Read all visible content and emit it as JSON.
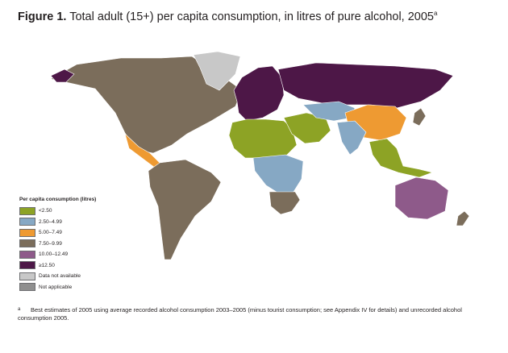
{
  "figure": {
    "label": "Figure 1.",
    "title": "Total adult (15+) per capita consumption, in litres of pure alcohol, 2005",
    "title_marker": "a"
  },
  "legend": {
    "title": "Per capita consumption (litres)",
    "items": [
      {
        "label": "<2.50",
        "color": "#8da325"
      },
      {
        "label": "2.50–4.99",
        "color": "#86a8c4"
      },
      {
        "label": "5.00–7.49",
        "color": "#ee9a32"
      },
      {
        "label": "7.50–9.99",
        "color": "#7b6d5b"
      },
      {
        "label": "10.00–12.49",
        "color": "#8e5a8a"
      },
      {
        "label": "≥12.50",
        "color": "#4d1747"
      },
      {
        "label": "Data not available",
        "color": "#c8c8c8"
      },
      {
        "label": "Not applicable",
        "color": "#8f8f8f"
      }
    ]
  },
  "map": {
    "border_color": "#ffffff",
    "ocean_color": "#ffffff",
    "regions": [
      {
        "name": "north-america",
        "color": "#7b6d5b"
      },
      {
        "name": "greenland",
        "color": "#c8c8c8"
      },
      {
        "name": "central-america",
        "color": "#ee9a32"
      },
      {
        "name": "south-america",
        "color": "#7b6d5b"
      },
      {
        "name": "europe",
        "color": "#4d1747"
      },
      {
        "name": "russia",
        "color": "#4d1747"
      },
      {
        "name": "north-africa",
        "color": "#8da325"
      },
      {
        "name": "central-africa",
        "color": "#86a8c4"
      },
      {
        "name": "southern-africa",
        "color": "#7b6d5b"
      },
      {
        "name": "middle-east",
        "color": "#8da325"
      },
      {
        "name": "central-asia",
        "color": "#86a8c4"
      },
      {
        "name": "china",
        "color": "#ee9a32"
      },
      {
        "name": "india",
        "color": "#86a8c4"
      },
      {
        "name": "southeast-asia",
        "color": "#8da325"
      },
      {
        "name": "australia",
        "color": "#8e5a8a"
      },
      {
        "name": "new-zealand",
        "color": "#7b6d5b"
      },
      {
        "name": "japan",
        "color": "#7b6d5b"
      }
    ]
  },
  "footnote": {
    "marker": "a",
    "text": "Best estimates of 2005 using average recorded alcohol consumption 2003–2005 (minus tourist consumption; see Appendix IV for details) and unrecorded alcohol consumption 2005."
  }
}
